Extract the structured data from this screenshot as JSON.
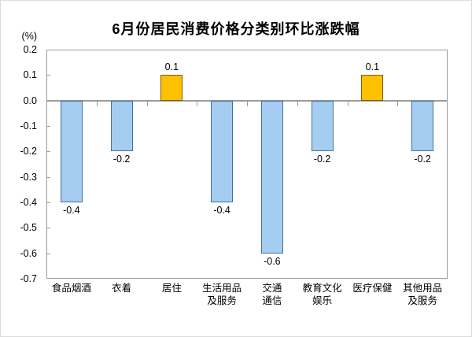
{
  "chart_data": {
    "type": "bar",
    "title": "6月份居民消费价格分类别环比涨跌幅",
    "unit": "(%)",
    "categories": [
      "食品烟酒",
      "衣着",
      "居住",
      "生活用品及服务",
      "交通通信",
      "教育文化娱乐",
      "医疗保健",
      "其他用品及服务"
    ],
    "category_label_lines": [
      [
        "食品烟酒"
      ],
      [
        "衣着"
      ],
      [
        "居住"
      ],
      [
        "生活用品",
        "及服务"
      ],
      [
        "交通",
        "通信"
      ],
      [
        "教育文化",
        "娱乐"
      ],
      [
        "医疗保健"
      ],
      [
        "其他用品",
        "及服务"
      ]
    ],
    "values": [
      -0.4,
      -0.2,
      0.1,
      -0.4,
      -0.6,
      -0.2,
      0.1,
      -0.2
    ],
    "data_labels": [
      "-0.4",
      "-0.2",
      "0.1",
      "-0.4",
      "-0.6",
      "-0.2",
      "0.1",
      "-0.2"
    ],
    "y_ticks": [
      "0.2",
      "0.1",
      "0.0",
      "-0.1",
      "-0.2",
      "-0.3",
      "-0.4",
      "-0.5",
      "-0.6",
      "-0.7"
    ],
    "ylim": [
      -0.7,
      0.2
    ],
    "xlabel": "",
    "ylabel": "(%)",
    "grid": false,
    "legend_position": "none",
    "colors": {
      "negative_fill": "#a5cdf1",
      "negative_border": "#41719c",
      "positive_fill": "#ffc000",
      "positive_border": "#7f6000",
      "axis_line": "#9a9a9a",
      "text": "#000000"
    }
  }
}
